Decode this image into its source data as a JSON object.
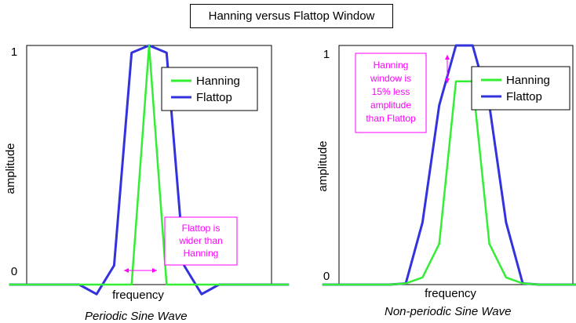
{
  "title": "Hanning versus Flattop Window",
  "chart_data": [
    {
      "type": "line",
      "caption": "Periodic Sine Wave",
      "xlabel": "frequency",
      "ylabel": "amplitude",
      "yticks": [
        "0",
        "1"
      ],
      "ylim": [
        0,
        1
      ],
      "x": [
        -8,
        -7,
        -6,
        -5,
        -4,
        -3,
        -2,
        -1,
        0,
        1,
        2,
        3,
        4,
        5,
        6,
        7,
        8
      ],
      "series": [
        {
          "name": "Hanning",
          "color": "#33ee33",
          "values": [
            0,
            0,
            0,
            0,
            0,
            0,
            0,
            0,
            1,
            0,
            0,
            0,
            0,
            0,
            0,
            0,
            0
          ]
        },
        {
          "name": "Flattop",
          "color": "#3333dd",
          "values": [
            0,
            0,
            0,
            0,
            0,
            -0.04,
            0.08,
            0.97,
            1,
            0.97,
            0.08,
            -0.04,
            0,
            0,
            0,
            0,
            0
          ]
        }
      ],
      "legend": "top-right",
      "annotation": {
        "lines": [
          "Flattop is",
          "wider than",
          "Hanning"
        ],
        "color": "#ff00ff"
      }
    },
    {
      "type": "line",
      "caption": "Non-periodic Sine Wave",
      "xlabel": "frequency",
      "ylabel": "amplitude",
      "yticks": [
        "0",
        "1"
      ],
      "ylim": [
        0,
        1
      ],
      "x": [
        -8,
        -7,
        -6,
        -5,
        -4,
        -3,
        -2,
        -1,
        0,
        1,
        2,
        3,
        4,
        5,
        6,
        7,
        8
      ],
      "series": [
        {
          "name": "Hanning",
          "color": "#33ee33",
          "values": [
            0,
            0,
            0,
            0,
            0,
            0.005,
            0.03,
            0.17,
            0.85,
            0.85,
            0.17,
            0.03,
            0.005,
            0,
            0,
            0,
            0
          ]
        },
        {
          "name": "Flattop",
          "color": "#3333dd",
          "values": [
            0,
            0,
            0,
            0,
            0,
            0.005,
            0.26,
            0.75,
            1,
            1,
            0.75,
            0.26,
            0.005,
            0,
            0,
            0,
            0
          ]
        }
      ],
      "legend": "top-right",
      "annotation": {
        "lines": [
          "Hanning",
          "window is",
          "15% less",
          "amplitude",
          "than Flattop"
        ],
        "color": "#ff00ff"
      }
    }
  ]
}
